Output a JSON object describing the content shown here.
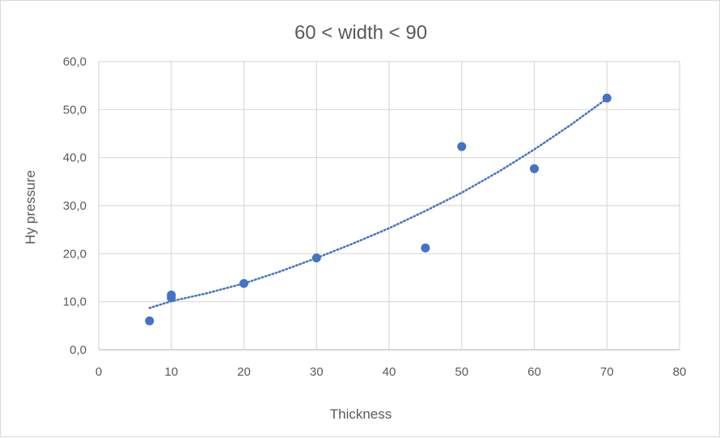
{
  "chart_data": {
    "type": "scatter",
    "title": "60 < width < 90",
    "xlabel": "Thickness",
    "ylabel": "Hy pressure",
    "xlim": [
      0,
      80
    ],
    "ylim": [
      0,
      60
    ],
    "x_ticks": [
      0,
      10,
      20,
      30,
      40,
      50,
      60,
      70,
      80
    ],
    "y_ticks": [
      0,
      10,
      20,
      30,
      40,
      50,
      60
    ],
    "x_tick_labels": [
      "0",
      "10",
      "20",
      "30",
      "40",
      "50",
      "60",
      "70",
      "80"
    ],
    "y_tick_labels": [
      "0,0",
      "10,0",
      "20,0",
      "30,0",
      "40,0",
      "50,0",
      "60,0"
    ],
    "grid": true,
    "legend": "none",
    "marker_color": "#4472C4",
    "series": [
      {
        "x": [
          7,
          10,
          10,
          20,
          30,
          45,
          50,
          60,
          70
        ],
        "y": [
          6.0,
          11.4,
          10.8,
          13.8,
          19.1,
          21.2,
          42.3,
          37.7,
          52.4
        ]
      }
    ],
    "trendline": {
      "style": "dotted",
      "color": "#4472C4",
      "x": [
        7,
        10,
        15,
        20,
        25,
        30,
        35,
        40,
        45,
        50,
        55,
        60,
        65,
        70
      ],
      "y": [
        8.7,
        10.1,
        11.8,
        13.8,
        16.3,
        19.1,
        22.1,
        25.3,
        28.9,
        32.7,
        37.0,
        41.7,
        46.8,
        52.3
      ]
    }
  }
}
